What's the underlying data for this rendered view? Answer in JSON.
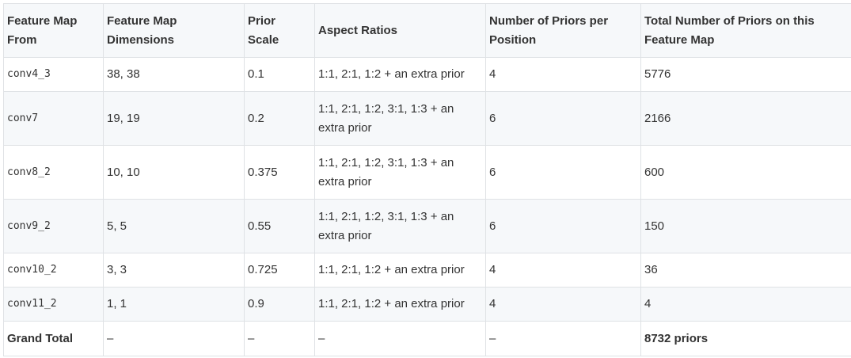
{
  "table": {
    "headers": [
      "Feature Map From",
      "Feature Map Dimensions",
      "Prior Scale",
      "Aspect Ratios",
      "Number of Priors per Position",
      "Total Number of Priors on this Feature Map"
    ],
    "rows": [
      [
        "conv4_3",
        "38, 38",
        "0.1",
        "1:1, 2:1, 1:2 + an extra prior",
        "4",
        "5776"
      ],
      [
        "conv7",
        "19, 19",
        "0.2",
        "1:1, 2:1, 1:2, 3:1, 1:3 + an extra prior",
        "6",
        "2166"
      ],
      [
        "conv8_2",
        "10, 10",
        "0.375",
        "1:1, 2:1, 1:2, 3:1, 1:3 + an extra prior",
        "6",
        "600"
      ],
      [
        "conv9_2",
        "5, 5",
        "0.55",
        "1:1, 2:1, 1:2, 3:1, 1:3 + an extra prior",
        "6",
        "150"
      ],
      [
        "conv10_2",
        "3, 3",
        "0.725",
        "1:1, 2:1, 1:2 + an extra prior",
        "4",
        "36"
      ],
      [
        "conv11_2",
        "1, 1",
        "0.9",
        "1:1, 2:1, 1:2 + an extra prior",
        "4",
        "4"
      ]
    ],
    "total_row": [
      "Grand Total",
      "–",
      "–",
      "–",
      "–",
      "8732 priors"
    ]
  }
}
